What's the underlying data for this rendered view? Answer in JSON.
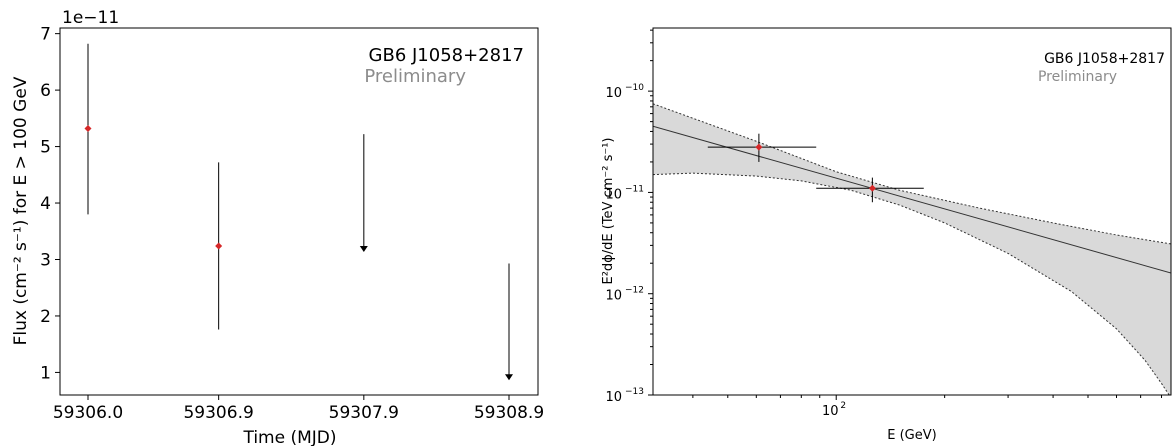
{
  "chart_data": [
    {
      "type": "scatter",
      "title": "",
      "xlabel": "Time (MJD)",
      "ylabel": "Flux (cm⁻² s⁻¹) for E > 100 GeV",
      "offset_text": "1e−11",
      "annotation": {
        "source": "GB6 J1058+2817",
        "status": "Preliminary"
      },
      "xlim": [
        59306.0,
        59308.9
      ],
      "ylim": [
        0.6,
        7.1
      ],
      "x_ticks": [
        {
          "value": 59306.0,
          "label": "59306.0"
        },
        {
          "value": 59306.9,
          "label": "59306.9"
        },
        {
          "value": 59307.9,
          "label": "59307.9"
        },
        {
          "value": 59308.9,
          "label": "59308.9"
        }
      ],
      "y_ticks": [
        {
          "value": 1,
          "label": "1"
        },
        {
          "value": 2,
          "label": "2"
        },
        {
          "value": 3,
          "label": "3"
        },
        {
          "value": 4,
          "label": "4"
        },
        {
          "value": 5,
          "label": "5"
        },
        {
          "value": 6,
          "label": "6"
        },
        {
          "value": 7,
          "label": "7"
        }
      ],
      "points": [
        {
          "x": 59306.0,
          "y": 5.32,
          "ylow": 3.8,
          "yhigh": 6.82
        },
        {
          "x": 59306.9,
          "y": 3.24,
          "ylow": 1.76,
          "yhigh": 4.72
        }
      ],
      "upper_limits": [
        {
          "x": 59307.9,
          "y": 5.22,
          "arrow_to": 3.15
        },
        {
          "x": 59308.9,
          "y": 2.93,
          "arrow_to": 0.88
        }
      ],
      "colors": {
        "point": "#d62728",
        "line": "#000000"
      }
    },
    {
      "type": "scatter",
      "title": "",
      "xlabel": "E (GeV)",
      "ylabel": "E²dϕ/dE (TeV cm⁻² s⁻¹)",
      "annotation": {
        "source": "GB6 J1058+2817",
        "status": "Preliminary"
      },
      "log_x": true,
      "log_y": true,
      "xlim": [
        31,
        850
      ],
      "ylim": [
        1e-13,
        4.2e-10
      ],
      "x_ticks": [
        {
          "value": 100,
          "label_base": "10",
          "label_exp": "2"
        }
      ],
      "y_ticks": [
        {
          "value": 1e-13,
          "label_base": "10",
          "label_exp": "−13"
        },
        {
          "value": 1e-12,
          "label_base": "10",
          "label_exp": "−12"
        },
        {
          "value": 1e-11,
          "label_base": "10",
          "label_exp": "−11"
        },
        {
          "value": 1e-10,
          "label_base": "10",
          "label_exp": "−10"
        }
      ],
      "points": [
        {
          "x": 61,
          "y": 2.8e-11,
          "xlow": 44,
          "xhigh": 88,
          "ylow": 2e-11,
          "yhigh": 3.8e-11
        },
        {
          "x": 126,
          "y": 1.1e-11,
          "xlow": 88,
          "xhigh": 175,
          "ylow": 8e-12,
          "yhigh": 1.4e-11
        }
      ],
      "model_line": [
        {
          "x": 31,
          "y": 4.5e-11
        },
        {
          "x": 850,
          "y": 1.6e-12
        }
      ],
      "band_upper": [
        {
          "x": 31,
          "y": 7.5e-11
        },
        {
          "x": 60,
          "y": 3.2e-11
        },
        {
          "x": 100,
          "y": 1.6e-11
        },
        {
          "x": 150,
          "y": 1.05e-11
        },
        {
          "x": 250,
          "y": 7e-12
        },
        {
          "x": 400,
          "y": 5e-12
        },
        {
          "x": 600,
          "y": 3.8e-12
        },
        {
          "x": 850,
          "y": 3.1e-12
        }
      ],
      "band_lower": [
        {
          "x": 31,
          "y": 1.5e-11
        },
        {
          "x": 40,
          "y": 1.55e-11
        },
        {
          "x": 60,
          "y": 1.45e-11
        },
        {
          "x": 80,
          "y": 1.3e-11
        },
        {
          "x": 110,
          "y": 1.05e-11
        },
        {
          "x": 150,
          "y": 7.5e-12
        },
        {
          "x": 200,
          "y": 5e-12
        },
        {
          "x": 300,
          "y": 2.5e-12
        },
        {
          "x": 450,
          "y": 1.05e-12
        },
        {
          "x": 600,
          "y": 4.5e-13
        },
        {
          "x": 720,
          "y": 2.2e-13
        },
        {
          "x": 800,
          "y": 1.3e-13
        },
        {
          "x": 840,
          "y": 1e-13
        }
      ],
      "colors": {
        "point": "#d62728",
        "band": "#d9d9d9",
        "line": "#333333"
      }
    }
  ]
}
